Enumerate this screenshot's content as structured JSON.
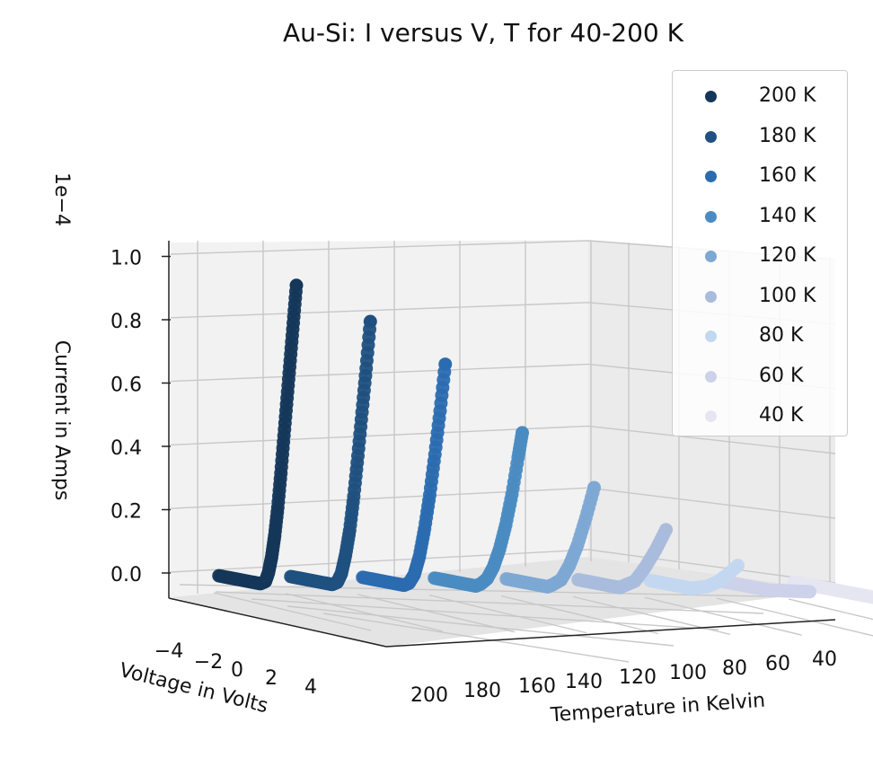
{
  "chart_data": {
    "type": "scatter",
    "title": "Au-Si: I versus V, T for 40-200 K",
    "xlabel": "Voltage in Volts",
    "ylabel": "Temperature in Kelvin",
    "zlabel": "Current in Amps",
    "z_scale_label": "1e−4",
    "x_ticks": [
      "−4",
      "−2",
      "0",
      "2",
      "4"
    ],
    "y_ticks": [
      "200",
      "180",
      "160",
      "140",
      "120",
      "100",
      "80",
      "60",
      "40"
    ],
    "z_ticks": [
      "0.0",
      "0.2",
      "0.4",
      "0.6",
      "0.8",
      "1.0"
    ],
    "xlim": [
      -5,
      5
    ],
    "zlim": [
      0,
      1.0
    ],
    "z_multiplier": 0.0001,
    "grid": true,
    "legend_position": "top-right",
    "series_note": "z values in units of 1e-4 A; curves sampled from the chart",
    "series": [
      {
        "name": "200 K",
        "temperature": 200,
        "color": "#14375a",
        "x": [
          -4.5,
          -3.5,
          -2.5,
          -1.5,
          -0.5,
          0.0,
          0.3,
          0.6,
          0.9,
          1.2,
          1.5,
          1.8,
          2.1,
          2.4,
          2.7,
          3.0
        ],
        "z": [
          0.0,
          0.0,
          0.0,
          0.0,
          0.0,
          0.01,
          0.04,
          0.09,
          0.16,
          0.25,
          0.36,
          0.48,
          0.6,
          0.72,
          0.84,
          0.96
        ]
      },
      {
        "name": "180 K",
        "temperature": 180,
        "color": "#1f5080",
        "x": [
          -4.5,
          -3.5,
          -2.5,
          -1.5,
          -0.5,
          0.0,
          0.4,
          0.8,
          1.2,
          1.6,
          2.0,
          2.4,
          2.8,
          3.2
        ],
        "z": [
          0.0,
          0.0,
          0.0,
          0.0,
          0.0,
          0.01,
          0.04,
          0.1,
          0.18,
          0.29,
          0.42,
          0.56,
          0.7,
          0.85
        ]
      },
      {
        "name": "160 K",
        "temperature": 160,
        "color": "#2b6cb0",
        "x": [
          -4.5,
          -3.5,
          -2.5,
          -1.5,
          -0.5,
          0.0,
          0.5,
          1.0,
          1.5,
          2.0,
          2.5,
          3.0,
          3.5
        ],
        "z": [
          0.0,
          0.0,
          0.0,
          0.0,
          0.0,
          0.01,
          0.04,
          0.1,
          0.19,
          0.3,
          0.43,
          0.57,
          0.72
        ]
      },
      {
        "name": "140 K",
        "temperature": 140,
        "color": "#4a8cc2",
        "x": [
          -4.5,
          -3.5,
          -2.5,
          -1.5,
          -0.5,
          0.0,
          0.6,
          1.2,
          1.8,
          2.4,
          3.0,
          3.6,
          4.0
        ],
        "z": [
          0.0,
          0.0,
          0.0,
          0.0,
          0.0,
          0.01,
          0.03,
          0.07,
          0.13,
          0.21,
          0.31,
          0.43,
          0.51
        ]
      },
      {
        "name": "120 K",
        "temperature": 120,
        "color": "#7ea8d4",
        "x": [
          -4.5,
          -3.5,
          -2.5,
          -1.5,
          -0.5,
          0.0,
          0.8,
          1.6,
          2.4,
          3.2,
          4.0
        ],
        "z": [
          0.0,
          0.0,
          0.0,
          0.0,
          0.0,
          0.01,
          0.03,
          0.08,
          0.15,
          0.24,
          0.34
        ]
      },
      {
        "name": "100 K",
        "temperature": 100,
        "color": "#a9bcdc",
        "x": [
          -4.5,
          -3.5,
          -2.5,
          -1.5,
          -0.5,
          0.0,
          1.0,
          2.0,
          3.0,
          4.0
        ],
        "z": [
          0.0,
          0.0,
          0.0,
          0.0,
          0.0,
          0.01,
          0.03,
          0.08,
          0.14,
          0.21
        ]
      },
      {
        "name": "80 K",
        "temperature": 80,
        "color": "#c3d7f0",
        "x": [
          -4.5,
          -3.5,
          -2.5,
          -1.5,
          -0.5,
          0.0,
          1.0,
          2.0,
          3.0,
          4.0
        ],
        "z": [
          0.0,
          0.0,
          0.0,
          0.0,
          0.0,
          0.005,
          0.015,
          0.035,
          0.065,
          0.1
        ]
      },
      {
        "name": "60 K",
        "temperature": 60,
        "color": "#ccd2ea",
        "x": [
          -4.5,
          -3.5,
          -2.5,
          -1.5,
          -0.5,
          0.0,
          1.0,
          2.0,
          3.0,
          4.0
        ],
        "z": [
          0.0,
          0.0,
          0.0,
          0.0,
          0.0,
          0.0,
          0.005,
          0.01,
          0.015,
          0.02
        ]
      },
      {
        "name": "40 K",
        "temperature": 40,
        "color": "#e6e6f2",
        "x": [
          -4.5,
          -3.5,
          -2.5,
          -1.5,
          -0.5,
          0.0,
          1.0,
          2.0,
          3.0,
          4.0
        ],
        "z": [
          0.0,
          0.0,
          0.0,
          0.0,
          0.0,
          0.0,
          0.0,
          0.0,
          0.0,
          0.0
        ]
      }
    ]
  }
}
